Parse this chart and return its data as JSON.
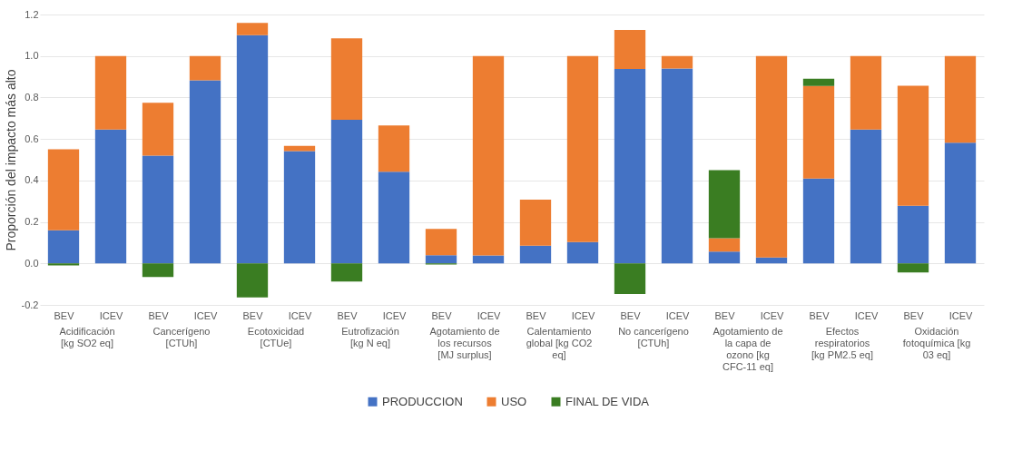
{
  "chart_data": {
    "type": "bar",
    "stacked": true,
    "ylabel": "Proporción del impacto más alto",
    "categories": [
      "BEV",
      "ICEV",
      "BEV",
      "ICEV",
      "BEV",
      "ICEV",
      "BEV",
      "ICEV",
      "BEV",
      "ICEV",
      "BEV",
      "ICEV",
      "BEV",
      "ICEV",
      "BEV",
      "ICEV",
      "BEV",
      "ICEV",
      "BEV",
      "ICEV"
    ],
    "series": [
      {
        "name": "PRODUCCION",
        "color": "#4472c4",
        "values": [
          0.16,
          0.645,
          0.52,
          0.883,
          1.1,
          0.542,
          0.693,
          0.442,
          0.04,
          0.038,
          0.085,
          0.103,
          0.938,
          0.94,
          0.057,
          0.029,
          0.409,
          0.645,
          0.278,
          0.582
        ]
      },
      {
        "name": "USO",
        "color": "#ed7d31",
        "values": [
          0.39,
          0.355,
          0.255,
          0.117,
          0.06,
          0.025,
          0.392,
          0.223,
          0.126,
          0.962,
          0.223,
          0.897,
          0.188,
          0.06,
          0.065,
          0.971,
          0.446,
          0.355,
          0.579,
          0.418
        ]
      },
      {
        "name": "FINAL DE VIDA",
        "color": "#3a7d22",
        "values": [
          -0.01,
          null,
          -0.065,
          null,
          -0.164,
          null,
          -0.087,
          null,
          -0.005,
          null,
          null,
          null,
          -0.148,
          null,
          0.328,
          null,
          0.036,
          null,
          -0.044,
          null
        ]
      }
    ],
    "ylim": [
      -0.2,
      1.2
    ],
    "yticks": [
      -0.2,
      {
        "value": 0,
        "label": "0.0"
      },
      0.2,
      0.4,
      0.6,
      0.8,
      {
        "value": 1,
        "label": "1.0"
      },
      1.2
    ],
    "grid": "y",
    "legend": "bottom",
    "annotations": [
      "Acidificación [kg SO2 eq]",
      "Cancerígeno [CTUh]",
      "Ecotoxicidad [CTUe]",
      "Eutrofización [kg N eq]",
      "Agotamiento de los recursos [MJ surplus]",
      "Calentamiento global [kg CO2 eq]",
      "No cancerígeno [CTUh]",
      "Agotamiento de la capa de ozono [kg CFC-11 eq]",
      "Efectos respiratorios [kg PM2.5 eq]",
      "Oxidación fotoquímica [kg 03 eq]"
    ]
  }
}
